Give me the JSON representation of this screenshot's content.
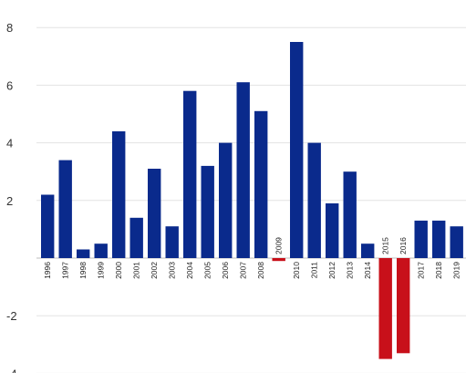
{
  "chart_data": {
    "type": "bar",
    "title": "",
    "xlabel": "",
    "ylabel": "",
    "ylim": [
      -4,
      8
    ],
    "yticks": [
      "8",
      "6",
      "4",
      "2",
      "-2",
      "-4"
    ],
    "grid": true,
    "legend": "none",
    "colors": {
      "positive": "#0a2a8c",
      "negative": "#c8101a"
    },
    "categories": [
      "1996",
      "1997",
      "1998",
      "1999",
      "2000",
      "2001",
      "2002",
      "2003",
      "2004",
      "2005",
      "2006",
      "2007",
      "2008",
      "2009",
      "2010",
      "2011",
      "2012",
      "2013",
      "2014",
      "2015",
      "2016",
      "2017",
      "2018",
      "2019"
    ],
    "values": [
      2.2,
      3.4,
      0.3,
      0.5,
      4.4,
      1.4,
      3.1,
      1.1,
      5.8,
      3.2,
      4.0,
      6.1,
      5.1,
      -0.1,
      7.5,
      4.0,
      1.9,
      3.0,
      0.5,
      -3.5,
      -3.3,
      1.3,
      1.3,
      1.1
    ]
  }
}
